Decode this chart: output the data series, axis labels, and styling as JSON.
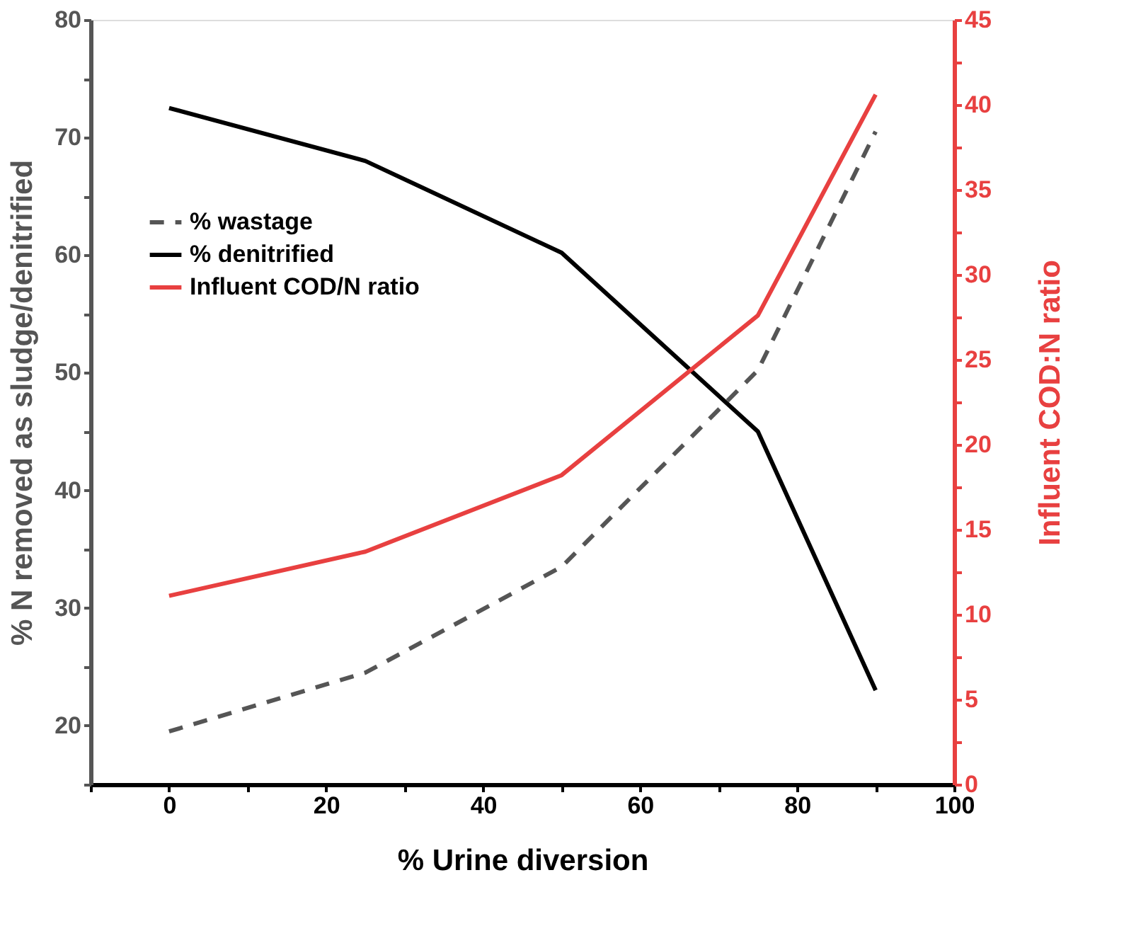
{
  "chart_data": {
    "type": "line",
    "xlabel": "% Urine diversion",
    "ylabel": "% N removed as sludge/denitrified",
    "y2label": "Influent COD:N ratio",
    "x": [
      0,
      25,
      50,
      75,
      90
    ],
    "series": [
      {
        "name": "% wastage",
        "color": "#555555",
        "line_style": "dashed",
        "values": [
          19.5,
          24.5,
          33.5,
          50.2,
          70.5
        ]
      },
      {
        "name": "% denitrified",
        "color": "#000000",
        "line_style": "solid",
        "values": [
          72.5,
          68,
          60.2,
          45,
          23
        ]
      },
      {
        "name": "Influent COD/N ratio",
        "color": "#e84040",
        "line_style": "solid",
        "axis": "y2",
        "values": [
          11.1,
          13.7,
          18.2,
          27.6,
          40.6
        ]
      }
    ],
    "xlim": [
      -10,
      100
    ],
    "xticks": [
      {
        "value": -10,
        "label": null
      },
      0,
      {
        "value": 10,
        "label": null
      },
      20,
      {
        "value": 30,
        "label": null
      },
      40,
      {
        "value": 50,
        "label": null
      },
      60,
      {
        "value": 70,
        "label": null
      },
      80,
      {
        "value": 90,
        "label": null
      },
      100
    ],
    "ylim": [
      15,
      80
    ],
    "yticks": [
      {
        "value": 15,
        "label": null
      },
      20,
      {
        "value": 25,
        "label": null
      },
      30,
      {
        "value": 35,
        "label": null
      },
      40,
      {
        "value": 45,
        "label": null
      },
      50,
      {
        "value": 55,
        "label": null
      },
      60,
      {
        "value": 65,
        "label": null
      },
      70,
      {
        "value": 75,
        "label": null
      },
      80
    ],
    "y2lim": [
      0,
      45
    ],
    "y2ticks": [
      0,
      {
        "value": 2.5,
        "label": null
      },
      5,
      {
        "value": 7.5,
        "label": null
      },
      10,
      {
        "value": 12.5,
        "label": null
      },
      15,
      {
        "value": 17.5,
        "label": null
      },
      20,
      {
        "value": 22.5,
        "label": null
      },
      25,
      {
        "value": 27.5,
        "label": null
      },
      30,
      {
        "value": 32.5,
        "label": null
      },
      35,
      {
        "value": 37.5,
        "label": null
      },
      40,
      {
        "value": 42.5,
        "label": null
      },
      45
    ],
    "grid": false,
    "legend": "top left"
  }
}
